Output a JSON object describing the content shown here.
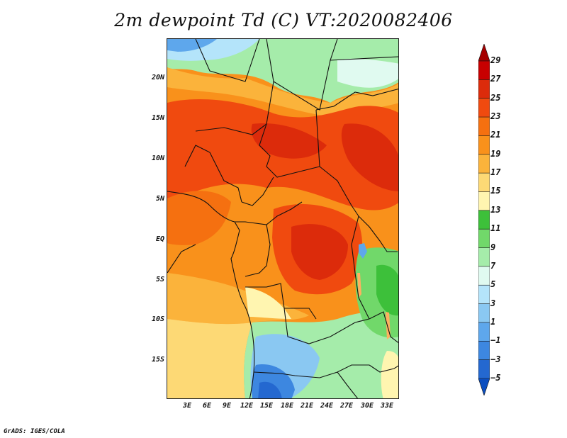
{
  "title": "2m dewpoint Td (C) VT:2020082406",
  "credit": "GrADS: IGES/COLA",
  "variable": "2m dewpoint",
  "units": "C",
  "valid_time": "2020082406",
  "lat_labels": [
    "20N",
    "15N",
    "10N",
    "5N",
    "EQ",
    "5S",
    "10S",
    "15S"
  ],
  "lon_labels": [
    "3E",
    "6E",
    "9E",
    "12E",
    "15E",
    "18E",
    "21E",
    "24E",
    "27E",
    "30E",
    "33E"
  ],
  "colorbar": {
    "labels": [
      "29",
      "27",
      "25",
      "23",
      "21",
      "19",
      "17",
      "15",
      "13",
      "11",
      "9",
      "7",
      "5",
      "3",
      "1",
      "−1",
      "−3",
      "−5"
    ],
    "colors": [
      "#a50000",
      "#c80000",
      "#dc2b0b",
      "#f04a0f",
      "#f57010",
      "#f9911b",
      "#fbb33b",
      "#fdd975",
      "#fff5b0",
      "#3dc03a",
      "#71d86a",
      "#a5ecaa",
      "#e0faf0",
      "#b4e4fa",
      "#8ac8f2",
      "#5ea7ec",
      "#3d87e0",
      "#2468d0",
      "#0b4ec0"
    ]
  }
}
